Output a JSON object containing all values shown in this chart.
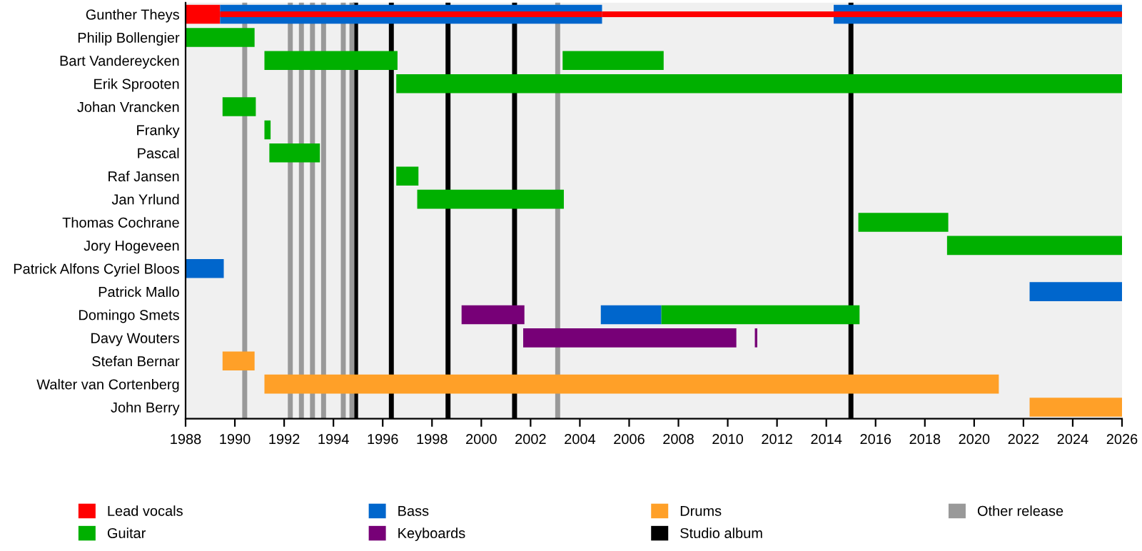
{
  "chart_data": {
    "type": "bar",
    "orientation": "horizontal",
    "categories": [
      "Gunther Theys",
      "Philip Bollengier",
      "Bart Vandereycken",
      "Erik Sprooten",
      "Johan Vrancken",
      "Franky",
      "Pascal",
      "Raf Jansen",
      "Jan Yrlund",
      "Thomas Cochrane",
      "Jory Hogeveen",
      "Patrick Alfons Cyriel Bloos",
      "Patrick Mallo",
      "Domingo Smets",
      "Davy Wouters",
      "Stefan Bernar",
      "Walter van Cortenberg",
      "John Berry"
    ],
    "series": [
      {
        "name": "Lead vocals",
        "color": "#ff0000",
        "base": [
          1988,
          null,
          null,
          null,
          null,
          null,
          null,
          null,
          null,
          null,
          null,
          null,
          null,
          null,
          null,
          null,
          null,
          null
        ],
        "values": [
          1.4,
          null,
          null,
          null,
          null,
          null,
          null,
          null,
          null,
          null,
          null,
          null,
          null,
          null,
          null,
          null,
          null,
          null
        ]
      },
      {
        "color": "#ff0000",
        "base": [
          1989.4,
          null,
          null,
          null,
          null,
          null,
          null,
          null,
          null,
          null,
          null,
          null,
          null,
          null,
          null,
          null,
          null,
          null
        ],
        "values": [
          15.5,
          null,
          null,
          null,
          null,
          null,
          null,
          null,
          null,
          null,
          null,
          null,
          null,
          null,
          null,
          null,
          null,
          null
        ]
      },
      {
        "color": "#ff0000",
        "base": [
          2004.9,
          null,
          null,
          null,
          null,
          null,
          null,
          null,
          null,
          null,
          null,
          null,
          null,
          null,
          null,
          null,
          null,
          null
        ],
        "values": [
          9.4,
          null,
          null,
          null,
          null,
          null,
          null,
          null,
          null,
          null,
          null,
          null,
          null,
          null,
          null,
          null,
          null,
          null
        ]
      },
      {
        "color": "#ff0000",
        "base": [
          2014.3,
          null,
          null,
          null,
          null,
          null,
          null,
          null,
          null,
          null,
          null,
          null,
          null,
          null,
          null,
          null,
          null,
          null
        ],
        "values": [
          11.7,
          null,
          null,
          null,
          null,
          null,
          null,
          null,
          null,
          null,
          null,
          null,
          null,
          null,
          null,
          null,
          null,
          null
        ]
      },
      {
        "name": "Guitar",
        "color": "#00b000",
        "base": [
          null,
          1988,
          1991.2,
          1996.55,
          1989.5,
          1991.2,
          1991.4,
          1996.55,
          1997.4,
          2015.3,
          2018.9,
          null,
          null,
          2007.3,
          null,
          null,
          null,
          null
        ],
        "values": [
          null,
          2.8,
          5.4,
          29.45,
          1.35,
          0.25,
          2.05,
          0.9,
          5.95,
          3.65,
          7.1,
          null,
          null,
          8.05,
          null,
          null,
          null,
          null
        ]
      },
      {
        "color": "#00b000",
        "base": [
          null,
          null,
          2003.3,
          null,
          null,
          null,
          null,
          null,
          null,
          null,
          null,
          null,
          null,
          null,
          null,
          null,
          null,
          null
        ],
        "values": [
          null,
          null,
          4.1,
          null,
          null,
          null,
          null,
          null,
          null,
          null,
          null,
          null,
          null,
          null,
          null,
          null,
          null,
          null
        ]
      },
      {
        "name": "Bass",
        "color": "#0066cc",
        "base": [
          1989.4,
          null,
          null,
          null,
          null,
          null,
          null,
          null,
          null,
          null,
          null,
          1988,
          2022.25,
          2004.85,
          null,
          null,
          null,
          null
        ],
        "values": [
          15.5,
          null,
          null,
          null,
          null,
          null,
          null,
          null,
          null,
          null,
          null,
          1.55,
          3.75,
          2.45,
          null,
          null,
          null,
          null
        ]
      },
      {
        "color": "#0066cc",
        "base": [
          2014.3,
          null,
          null,
          null,
          null,
          null,
          null,
          null,
          null,
          null,
          null,
          null,
          null,
          null,
          null,
          null,
          null,
          null
        ],
        "values": [
          11.7,
          null,
          null,
          null,
          null,
          null,
          null,
          null,
          null,
          null,
          null,
          null,
          null,
          null,
          null,
          null,
          null,
          null
        ]
      },
      {
        "name": "Keyboards",
        "color": "#770077",
        "base": [
          null,
          null,
          null,
          null,
          null,
          null,
          null,
          null,
          null,
          null,
          null,
          null,
          null,
          1999.2,
          2001.7,
          null,
          null,
          null
        ],
        "values": [
          null,
          null,
          null,
          null,
          null,
          null,
          null,
          null,
          null,
          null,
          null,
          null,
          null,
          2.55,
          8.65,
          null,
          null,
          null
        ]
      },
      {
        "color": "#770077",
        "base": [
          null,
          null,
          null,
          null,
          null,
          null,
          null,
          null,
          null,
          null,
          null,
          null,
          null,
          null,
          2011.1,
          null,
          null,
          null
        ],
        "values": [
          null,
          null,
          null,
          null,
          null,
          null,
          null,
          null,
          null,
          null,
          null,
          null,
          null,
          null,
          0.1,
          null,
          null,
          null
        ]
      },
      {
        "name": "Drums",
        "color": "#ffa028",
        "base": [
          null,
          null,
          null,
          null,
          null,
          null,
          null,
          null,
          null,
          null,
          null,
          null,
          null,
          null,
          null,
          1989.5,
          1991.2,
          2022.25
        ],
        "values": [
          null,
          null,
          null,
          null,
          null,
          null,
          null,
          null,
          null,
          null,
          null,
          null,
          null,
          null,
          null,
          1.3,
          29.8,
          3.75
        ]
      }
    ],
    "ref_lines": [
      {
        "axis": "x",
        "value": 1994.9,
        "label": "Studio album",
        "color": "#000000"
      },
      {
        "axis": "x",
        "value": 1996.35,
        "color": "#000000"
      },
      {
        "axis": "x",
        "value": 1998.65,
        "color": "#000000"
      },
      {
        "axis": "x",
        "value": 2001.35,
        "color": "#000000"
      },
      {
        "axis": "x",
        "value": 2015.0,
        "color": "#000000"
      },
      {
        "axis": "x",
        "value": 1990.4,
        "label": "Other release",
        "color": "#999999"
      },
      {
        "axis": "x",
        "value": 1992.25,
        "color": "#999999"
      },
      {
        "axis": "x",
        "value": 1992.7,
        "color": "#999999"
      },
      {
        "axis": "x",
        "value": 1993.15,
        "color": "#999999"
      },
      {
        "axis": "x",
        "value": 1993.6,
        "color": "#999999"
      },
      {
        "axis": "x",
        "value": 1994.4,
        "color": "#999999"
      },
      {
        "axis": "x",
        "value": 1994.75,
        "color": "#999999"
      },
      {
        "axis": "x",
        "value": 2003.1,
        "color": "#999999"
      }
    ],
    "xlim": [
      1988,
      2026
    ],
    "xticks": [
      1988,
      1990,
      1992,
      1994,
      1996,
      1998,
      2000,
      2002,
      2004,
      2006,
      2008,
      2010,
      2012,
      2014,
      2016,
      2018,
      2020,
      2022,
      2024,
      2026
    ],
    "grid": "y",
    "legend": "bottom"
  }
}
